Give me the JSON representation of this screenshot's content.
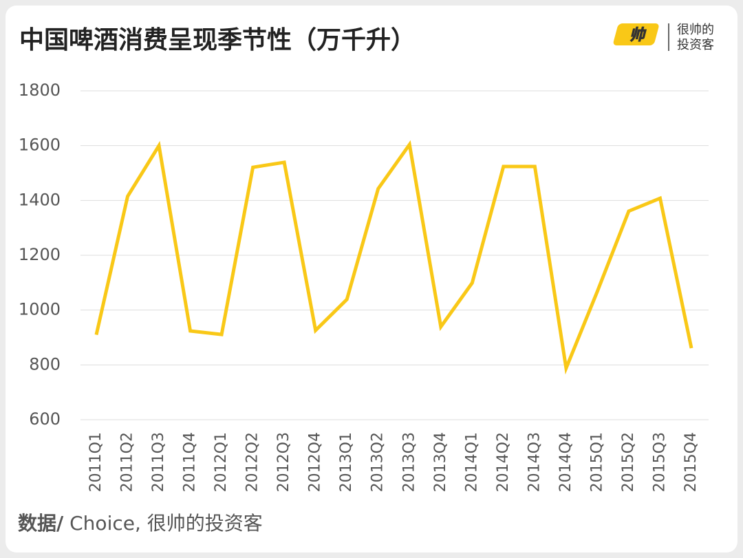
{
  "chart_data": {
    "type": "line",
    "title": "中国啤酒消费呈现季节性（万千升）",
    "logo": [
      "很帅的",
      "投资客"
    ],
    "source": {
      "label": "数据/",
      "text": " Choice, 很帅的投资客"
    },
    "categories": [
      "2011Q1",
      "2011Q2",
      "2011Q3",
      "2011Q4",
      "2012Q1",
      "2012Q2",
      "2012Q3",
      "2012Q4",
      "2013Q1",
      "2013Q2",
      "2013Q3",
      "2013Q4",
      "2014Q1",
      "2014Q2",
      "2014Q3",
      "2014Q4",
      "2015Q1",
      "2015Q2",
      "2015Q3",
      "2015Q4"
    ],
    "values": [
      910,
      1415,
      1600,
      924,
      911,
      1521,
      1539,
      926,
      1039,
      1443,
      1604,
      939,
      1099,
      1524,
      1524,
      788,
      1069,
      1361,
      1408,
      861
    ],
    "color": "#f9c817",
    "ylim": [
      600,
      1800
    ],
    "yticks": [
      600,
      800,
      1000,
      1200,
      1400,
      1600,
      1800
    ],
    "grid": true
  }
}
